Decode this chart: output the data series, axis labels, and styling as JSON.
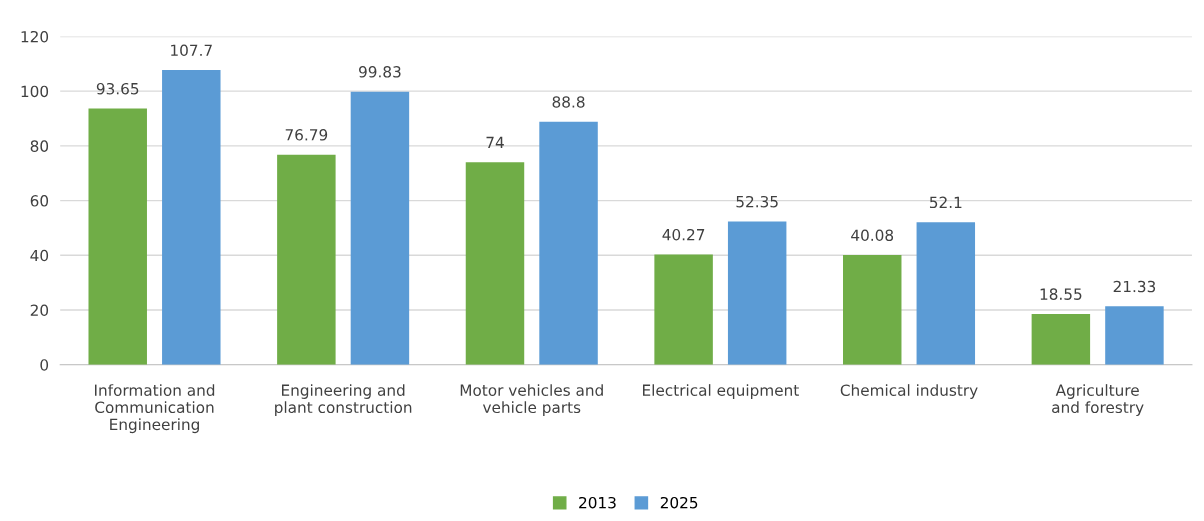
{
  "chart_data": {
    "type": "bar",
    "categories": [
      "Information and\nCommunication\nEngineering",
      "Engineering and\nplant construction",
      "Motor vehicles and\nvehicle parts",
      "Electrical equipment",
      "Chemical industry",
      "Agriculture\nand forestry"
    ],
    "series": [
      {
        "name": "2013",
        "color": "#70ad47",
        "values": [
          93.65,
          76.79,
          74,
          40.27,
          40.08,
          18.55
        ]
      },
      {
        "name": "2025",
        "color": "#5b9bd5",
        "values": [
          107.7,
          99.83,
          88.8,
          52.35,
          52.1,
          21.33
        ]
      }
    ],
    "ylim": [
      0,
      120
    ],
    "yticks": [
      0,
      20,
      40,
      60,
      80,
      100,
      120
    ],
    "grid": "y",
    "legend": "bottom",
    "data_labels": true
  }
}
